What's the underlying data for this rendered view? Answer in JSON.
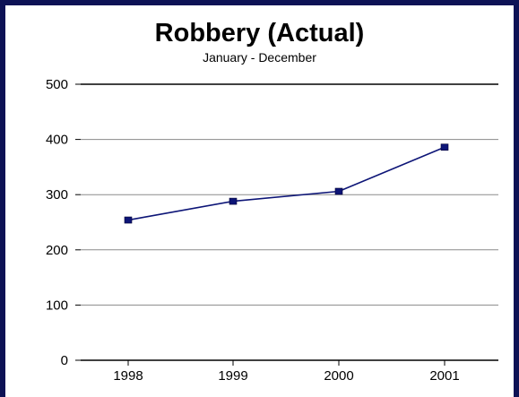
{
  "chart_data": {
    "type": "line",
    "title": "Robbery (Actual)",
    "subtitle": "January - December",
    "categories": [
      "1998",
      "1999",
      "2000",
      "2001"
    ],
    "series": [
      {
        "values": [
          254,
          288,
          306,
          386
        ]
      }
    ],
    "ylim": [
      0,
      500
    ],
    "yticks": [
      0,
      100,
      200,
      300,
      400,
      500
    ],
    "grid": true,
    "colors": {
      "series": "#0d1577",
      "frame": "#0d1255",
      "grid": "#8a8a8a"
    }
  }
}
